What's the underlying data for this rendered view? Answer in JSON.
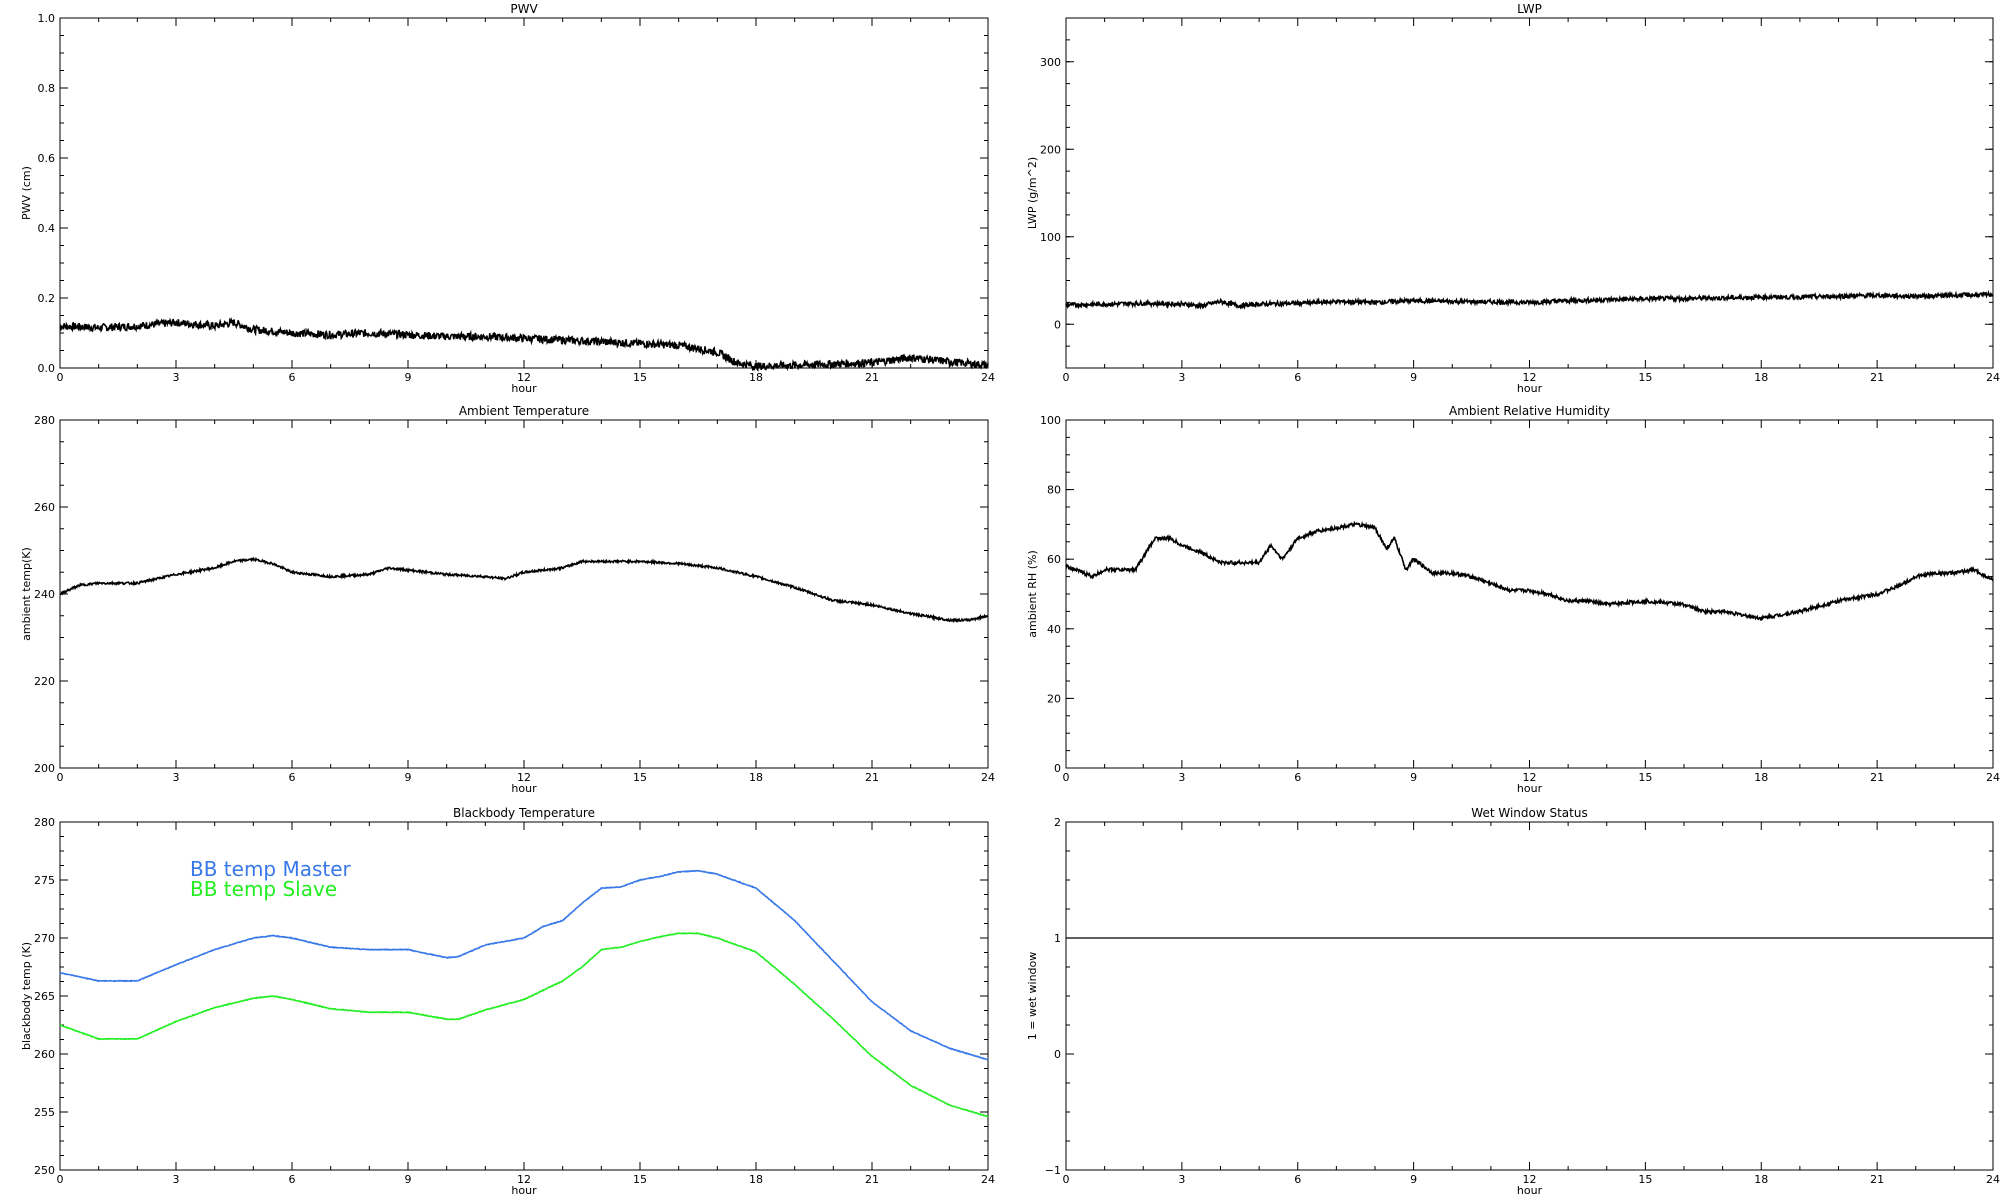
{
  "chart_data": [
    {
      "id": "pwv",
      "type": "line",
      "title": "PWV",
      "xlabel": "hour",
      "ylabel": "PWV (cm)",
      "xlim": [
        0,
        24
      ],
      "ylim": [
        0,
        1
      ],
      "xticks": [
        "0",
        "3",
        "6",
        "9",
        "12",
        "15",
        "18",
        "21",
        "24"
      ],
      "yticks": [
        "0.0",
        "0.2",
        "0.4",
        "0.6",
        "0.8",
        "1.0"
      ],
      "series": [
        {
          "color": "#000000",
          "noise": 0.011,
          "values": [
            [
              0,
              0.12
            ],
            [
              1,
              0.115
            ],
            [
              2,
              0.12
            ],
            [
              3,
              0.13
            ],
            [
              4,
              0.12
            ],
            [
              4.5,
              0.13
            ],
            [
              5,
              0.11
            ],
            [
              6,
              0.1
            ],
            [
              7,
              0.095
            ],
            [
              8,
              0.1
            ],
            [
              9,
              0.095
            ],
            [
              10,
              0.09
            ],
            [
              11,
              0.09
            ],
            [
              12,
              0.085
            ],
            [
              13,
              0.08
            ],
            [
              14,
              0.075
            ],
            [
              15,
              0.07
            ],
            [
              16,
              0.065
            ],
            [
              17,
              0.045
            ],
            [
              17.5,
              0.015
            ],
            [
              18,
              0.005
            ],
            [
              19,
              0.008
            ],
            [
              20,
              0.012
            ],
            [
              21,
              0.015
            ],
            [
              22,
              0.03
            ],
            [
              23,
              0.018
            ],
            [
              24,
              0.008
            ]
          ]
        }
      ]
    },
    {
      "id": "lwp",
      "type": "line",
      "title": "LWP",
      "xlabel": "hour",
      "ylabel": "LWP (g/m^2)",
      "xlim": [
        0,
        24
      ],
      "ylim": [
        -50,
        350
      ],
      "xticks": [
        "0",
        "3",
        "6",
        "9",
        "12",
        "15",
        "18",
        "21",
        "24"
      ],
      "yticks": [
        "0",
        "100",
        "200",
        "300"
      ],
      "series": [
        {
          "color": "#000000",
          "noise": 2.5,
          "values": [
            [
              0,
              22
            ],
            [
              2,
              24
            ],
            [
              3,
              23
            ],
            [
              3.5,
              21
            ],
            [
              4,
              26
            ],
            [
              4.5,
              21
            ],
            [
              5,
              23
            ],
            [
              6,
              24
            ],
            [
              7,
              26
            ],
            [
              8,
              25
            ],
            [
              9,
              27
            ],
            [
              10,
              26
            ],
            [
              12,
              25
            ],
            [
              13,
              27
            ],
            [
              15,
              29
            ],
            [
              17,
              30
            ],
            [
              18,
              31
            ],
            [
              19,
              31
            ],
            [
              20,
              32
            ],
            [
              21,
              33
            ],
            [
              22,
              32
            ],
            [
              23,
              33
            ],
            [
              24,
              34
            ]
          ]
        }
      ]
    },
    {
      "id": "ambient-temp",
      "type": "line",
      "title": "Ambient Temperature",
      "xlabel": "hour",
      "ylabel": "ambient temp(K)",
      "xlim": [
        0,
        24
      ],
      "ylim": [
        200,
        280
      ],
      "xticks": [
        "0",
        "3",
        "6",
        "9",
        "12",
        "15",
        "18",
        "21",
        "24"
      ],
      "yticks": [
        "200",
        "220",
        "240",
        "260",
        "280"
      ],
      "series": [
        {
          "color": "#000000",
          "noise": 0.25,
          "values": [
            [
              0,
              240
            ],
            [
              0.5,
              242
            ],
            [
              1,
              242.5
            ],
            [
              2,
              242.5
            ],
            [
              3,
              244.5
            ],
            [
              4,
              246
            ],
            [
              4.5,
              247.5
            ],
            [
              5,
              248
            ],
            [
              5.5,
              247
            ],
            [
              6,
              245
            ],
            [
              7,
              244
            ],
            [
              8,
              244.5
            ],
            [
              8.5,
              246
            ],
            [
              9,
              245.5
            ],
            [
              10,
              244.5
            ],
            [
              11,
              244
            ],
            [
              11.5,
              243.5
            ],
            [
              12,
              245
            ],
            [
              13,
              246
            ],
            [
              13.5,
              247.5
            ],
            [
              15,
              247.5
            ],
            [
              16,
              247
            ],
            [
              17,
              246
            ],
            [
              18,
              244
            ],
            [
              19,
              241.5
            ],
            [
              20,
              238.5
            ],
            [
              21,
              237.5
            ],
            [
              22,
              235.5
            ],
            [
              23,
              234
            ],
            [
              23.5,
              234
            ],
            [
              24,
              235
            ]
          ]
        }
      ]
    },
    {
      "id": "ambient-rh",
      "type": "line",
      "title": "Ambient Relative Humidity",
      "xlabel": "hour",
      "ylabel": "ambient RH (%)",
      "xlim": [
        0,
        24
      ],
      "ylim": [
        0,
        100
      ],
      "xticks": [
        "0",
        "3",
        "6",
        "9",
        "12",
        "15",
        "18",
        "21",
        "24"
      ],
      "yticks": [
        "0",
        "20",
        "40",
        "60",
        "80",
        "100"
      ],
      "series": [
        {
          "color": "#000000",
          "noise": 0.5,
          "values": [
            [
              0,
              58
            ],
            [
              0.7,
              55
            ],
            [
              1,
              57
            ],
            [
              1.8,
              57
            ],
            [
              2.3,
              66
            ],
            [
              2.7,
              66
            ],
            [
              3,
              64
            ],
            [
              3.5,
              62
            ],
            [
              4,
              59
            ],
            [
              5,
              59
            ],
            [
              5.3,
              64
            ],
            [
              5.6,
              60
            ],
            [
              6,
              66
            ],
            [
              6.5,
              68
            ],
            [
              7,
              69
            ],
            [
              7.5,
              70
            ],
            [
              8,
              69
            ],
            [
              8.3,
              63
            ],
            [
              8.5,
              66
            ],
            [
              8.8,
              57
            ],
            [
              9,
              60
            ],
            [
              9.5,
              56
            ],
            [
              10,
              56
            ],
            [
              10.5,
              55
            ],
            [
              11,
              53
            ],
            [
              11.5,
              51
            ],
            [
              12,
              51
            ],
            [
              12.5,
              50
            ],
            [
              13,
              48
            ],
            [
              13.5,
              48
            ],
            [
              14,
              47
            ],
            [
              15,
              48
            ],
            [
              16,
              47
            ],
            [
              16.5,
              45
            ],
            [
              17,
              45
            ],
            [
              17.5,
              44
            ],
            [
              18,
              43
            ],
            [
              19,
              45
            ],
            [
              20,
              48
            ],
            [
              21,
              50
            ],
            [
              21.5,
              52
            ],
            [
              22,
              55
            ],
            [
              22.5,
              56
            ],
            [
              23,
              56
            ],
            [
              23.5,
              57
            ],
            [
              24,
              54
            ]
          ]
        }
      ]
    },
    {
      "id": "bb-temp",
      "type": "line",
      "title": "Blackbody Temperature",
      "xlabel": "hour",
      "ylabel": "blackbody temp (K)",
      "xlim": [
        0,
        24
      ],
      "ylim": [
        250,
        280
      ],
      "xticks": [
        "0",
        "3",
        "6",
        "9",
        "12",
        "15",
        "18",
        "21",
        "24"
      ],
      "yticks": [
        "250",
        "255",
        "260",
        "265",
        "270",
        "275",
        "280"
      ],
      "legend": {
        "placement": "top-left",
        "entries": [
          {
            "label": "BB temp Master",
            "color": "#3878e8"
          },
          {
            "label": "BB temp Slave",
            "color": "#22ee22"
          }
        ]
      },
      "series": [
        {
          "name": "BB temp Master",
          "color": "#3878e8",
          "noise": 0.03,
          "values": [
            [
              0,
              267
            ],
            [
              1,
              266.3
            ],
            [
              2,
              266.3
            ],
            [
              3,
              267.7
            ],
            [
              4,
              269
            ],
            [
              5,
              270
            ],
            [
              5.5,
              270.2
            ],
            [
              6,
              270
            ],
            [
              7,
              269.2
            ],
            [
              8,
              269
            ],
            [
              9,
              269
            ],
            [
              10,
              268.3
            ],
            [
              10.3,
              268.4
            ],
            [
              11,
              269.4
            ],
            [
              12,
              270
            ],
            [
              12.5,
              271
            ],
            [
              13,
              271.5
            ],
            [
              13.5,
              273
            ],
            [
              14,
              274.3
            ],
            [
              14.5,
              274.4
            ],
            [
              15,
              275
            ],
            [
              15.5,
              275.3
            ],
            [
              16,
              275.7
            ],
            [
              16.5,
              275.8
            ],
            [
              17,
              275.5
            ],
            [
              18,
              274.3
            ],
            [
              19,
              271.5
            ],
            [
              20,
              268
            ],
            [
              21,
              264.5
            ],
            [
              22,
              262
            ],
            [
              23,
              260.5
            ],
            [
              24,
              259.5
            ]
          ]
        },
        {
          "name": "BB temp Slave",
          "color": "#22ee22",
          "noise": 0.03,
          "values": [
            [
              0,
              262.5
            ],
            [
              1,
              261.3
            ],
            [
              2,
              261.3
            ],
            [
              3,
              262.8
            ],
            [
              4,
              264
            ],
            [
              5,
              264.8
            ],
            [
              5.5,
              265
            ],
            [
              6,
              264.7
            ],
            [
              7,
              263.9
            ],
            [
              8,
              263.6
            ],
            [
              9,
              263.6
            ],
            [
              10,
              263
            ],
            [
              10.3,
              263
            ],
            [
              11,
              263.8
            ],
            [
              12,
              264.7
            ],
            [
              12.5,
              265.5
            ],
            [
              13,
              266.3
            ],
            [
              13.5,
              267.5
            ],
            [
              14,
              269
            ],
            [
              14.5,
              269.2
            ],
            [
              15,
              269.7
            ],
            [
              15.5,
              270.1
            ],
            [
              16,
              270.4
            ],
            [
              16.5,
              270.4
            ],
            [
              17,
              270
            ],
            [
              18,
              268.8
            ],
            [
              19,
              266
            ],
            [
              20,
              263
            ],
            [
              21,
              259.8
            ],
            [
              22,
              257.3
            ],
            [
              23,
              255.6
            ],
            [
              24,
              254.6
            ]
          ]
        }
      ]
    },
    {
      "id": "wet-window",
      "type": "line",
      "title": "Wet Window Status",
      "xlabel": "hour",
      "ylabel": "1 = wet window",
      "xlim": [
        0,
        24
      ],
      "ylim": [
        -1,
        2
      ],
      "xticks": [
        "0",
        "3",
        "6",
        "9",
        "12",
        "15",
        "18",
        "21",
        "24"
      ],
      "yticks": [
        "−1",
        "0",
        "1",
        "2"
      ],
      "series": [
        {
          "color": "#000000",
          "noise": 0,
          "values": [
            [
              0,
              1
            ],
            [
              24,
              1
            ]
          ]
        }
      ]
    }
  ]
}
